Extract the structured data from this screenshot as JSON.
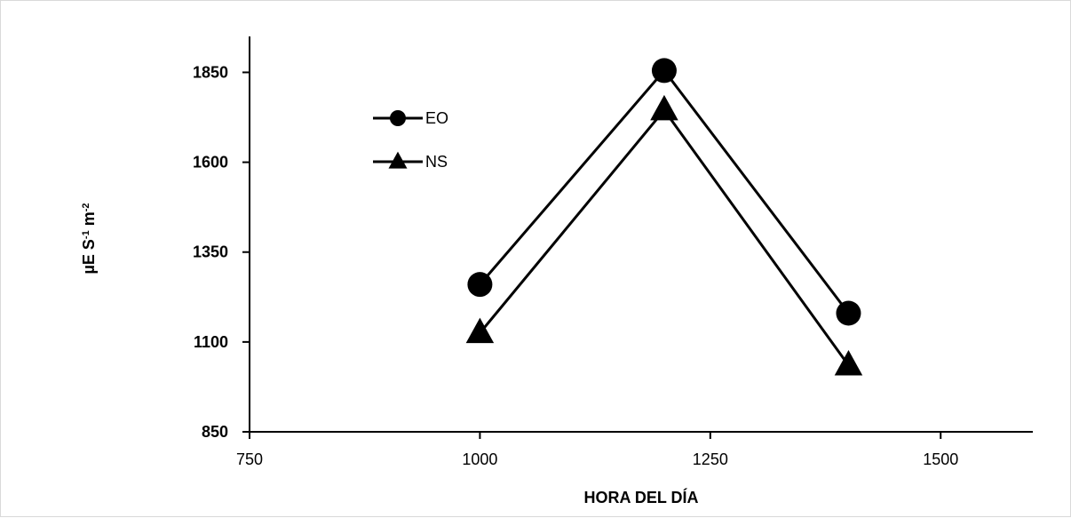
{
  "chart_data": {
    "type": "line",
    "title": "",
    "xlabel": "HORA DEL DÍA",
    "ylabel": {
      "base": "µE S",
      "sup1": "-1",
      "mid": " m",
      "sup2": "-2"
    },
    "xlim": [
      750,
      1600
    ],
    "ylim": [
      850,
      1950
    ],
    "xticks": [
      750,
      1000,
      1250,
      1500
    ],
    "yticks": [
      850,
      1100,
      1350,
      1600,
      1850
    ],
    "grid": false,
    "legend_position": "top-left",
    "series": [
      {
        "name": "EO",
        "marker": "circle",
        "color": "#000000",
        "x": [
          1000,
          1200,
          1400
        ],
        "y": [
          1260,
          1855,
          1180
        ]
      },
      {
        "name": "NS",
        "marker": "triangle",
        "color": "#000000",
        "x": [
          1000,
          1200,
          1400
        ],
        "y": [
          1125,
          1745,
          1035
        ]
      }
    ]
  }
}
